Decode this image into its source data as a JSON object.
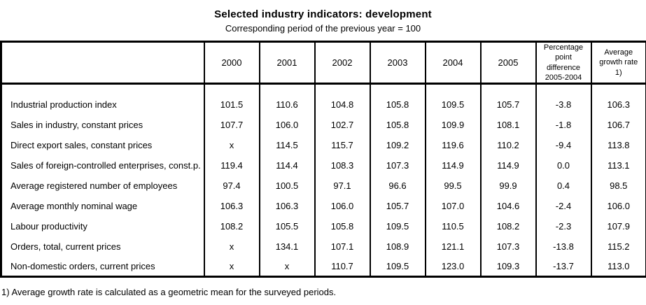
{
  "title": "Selected industry indicators: development",
  "subtitle": "Corresponding period of the previous year = 100",
  "colors": {
    "background": "#ffffff",
    "text": "#000000",
    "border": "#000000"
  },
  "table": {
    "columns": [
      "",
      "2000",
      "2001",
      "2002",
      "2003",
      "2004",
      "2005",
      "Percentage\npoint difference\n2005-2004",
      "Average\ngrowth rate\n1)"
    ],
    "rows": [
      {
        "label": "Industrial production index",
        "values": [
          "101.5",
          "110.6",
          "104.8",
          "105.8",
          "109.5",
          "105.7",
          "-3.8",
          "106.3"
        ]
      },
      {
        "label": "Sales in industry, constant prices",
        "values": [
          "107.7",
          "106.0",
          "102.7",
          "105.8",
          "109.9",
          "108.1",
          "-1.8",
          "106.7"
        ]
      },
      {
        "label": "Direct export sales, constant prices",
        "values": [
          "x",
          "114.5",
          "115.7",
          "109.2",
          "119.6",
          "110.2",
          "-9.4",
          "113.8"
        ]
      },
      {
        "label": "Sales of foreign-controlled enterprises, const.p.",
        "values": [
          "119.4",
          "114.4",
          "108.3",
          "107.3",
          "114.9",
          "114.9",
          "0.0",
          "113.1"
        ]
      },
      {
        "label": "Average registered number of employees",
        "values": [
          "97.4",
          "100.5",
          "97.1",
          "96.6",
          "99.5",
          "99.9",
          "0.4",
          "98.5"
        ]
      },
      {
        "label": "Average monthly nominal wage",
        "values": [
          "106.3",
          "106.3",
          "106.0",
          "105.7",
          "107.0",
          "104.6",
          "-2.4",
          "106.0"
        ]
      },
      {
        "label": "Labour productivity",
        "values": [
          "108.2",
          "105.5",
          "105.8",
          "109.5",
          "110.5",
          "108.2",
          "-2.3",
          "107.9"
        ]
      },
      {
        "label": "Orders, total, current prices",
        "values": [
          "x",
          "134.1",
          "107.1",
          "108.9",
          "121.1",
          "107.3",
          "-13.8",
          "115.2"
        ]
      },
      {
        "label": "Non-domestic orders, current prices",
        "values": [
          "x",
          "x",
          "110.7",
          "109.5",
          "123.0",
          "109.3",
          "-13.7",
          "113.0"
        ]
      }
    ]
  },
  "footnote": "1) Average growth rate is calculated as a geometric mean for the surveyed periods."
}
